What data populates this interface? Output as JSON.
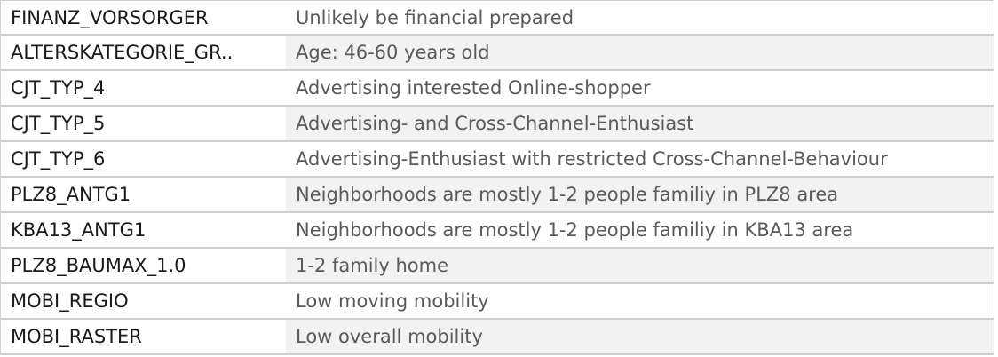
{
  "table": {
    "rows": [
      {
        "key": "FINANZ_VORSORGER",
        "value": "Unlikely be financial prepared"
      },
      {
        "key": "ALTERSKATEGORIE_GR..",
        "value": "Age: 46-60 years old"
      },
      {
        "key": "CJT_TYP_4",
        "value": "Advertising interested Online-shopper"
      },
      {
        "key": "CJT_TYP_5",
        "value": "Advertising- and Cross-Channel-Enthusiast"
      },
      {
        "key": "CJT_TYP_6",
        "value": "Advertising-Enthusiast with restricted Cross-Channel-Behaviour"
      },
      {
        "key": "PLZ8_ANTG1",
        "value": "Neighborhoods are mostly 1-2 people familiy in PLZ8 area"
      },
      {
        "key": "KBA13_ANTG1",
        "value": "Neighborhoods are mostly 1-2 people familiy in KBA13 area"
      },
      {
        "key": "PLZ8_BAUMAX_1.0",
        "value": "1-2 family home"
      },
      {
        "key": "MOBI_REGIO",
        "value": "Low moving mobility"
      },
      {
        "key": "MOBI_RASTER",
        "value": "Low overall mobility"
      }
    ]
  }
}
